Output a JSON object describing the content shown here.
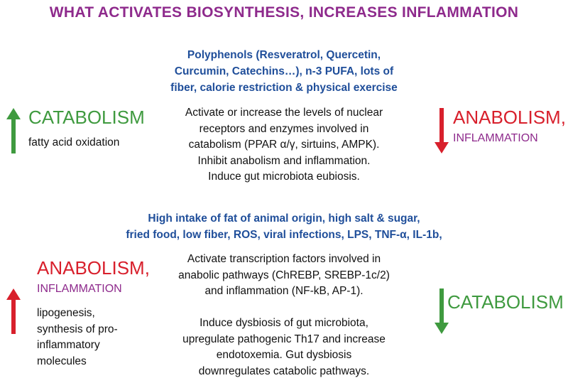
{
  "title": "WHAT ACTIVATES BIOSYNTHESIS, INCREASES INFLAMMATION",
  "top": {
    "inputs": [
      "Polyphenols (Resveratrol, Quercetin,",
      "Curcumin, Catechins…), n-3 PUFA, lots of",
      "fiber, calorie restriction & physical exercise"
    ],
    "effects": [
      "Activate or increase the levels of nuclear",
      "receptors and enzymes involved in",
      "catabolism (PPAR α/γ, sirtuins, AMPK).",
      "Inhibit anabolism and inflammation.",
      "Induce gut microbiota eubiosis."
    ],
    "left_label": "CATABOLISM",
    "left_note": "fatty acid oxidation",
    "right_label_1": "ANABOLISM,",
    "right_label_2": "INFLAMMATION",
    "colors": {
      "up_arrow": "#3f9a3f",
      "down_arrow": "#d8202c"
    }
  },
  "bottom": {
    "inputs": [
      "High intake of fat of animal origin, high salt & sugar,",
      "fried food, low fiber, ROS, viral infections, LPS, TNF-α, IL-1b,"
    ],
    "effects_1": [
      "Activate transcription factors involved in",
      "anabolic pathways (ChREBP, SREBP-1c/2)",
      "and inflammation (NF-kB, AP-1)."
    ],
    "effects_2": [
      "Induce dysbiosis of gut microbiota,",
      "upregulate pathogenic Th17 and increase",
      "endotoxemia. Gut dysbiosis",
      "downregulates catabolic pathways."
    ],
    "left_label_1": "ANABOLISM,",
    "left_label_2": "INFLAMMATION",
    "left_notes": [
      "lipogenesis,",
      "synthesis of pro-",
      "inflammatory",
      "molecules"
    ],
    "right_label": "CATABOLISM",
    "colors": {
      "up_arrow": "#d8202c",
      "down_arrow": "#3f9a3f"
    }
  }
}
